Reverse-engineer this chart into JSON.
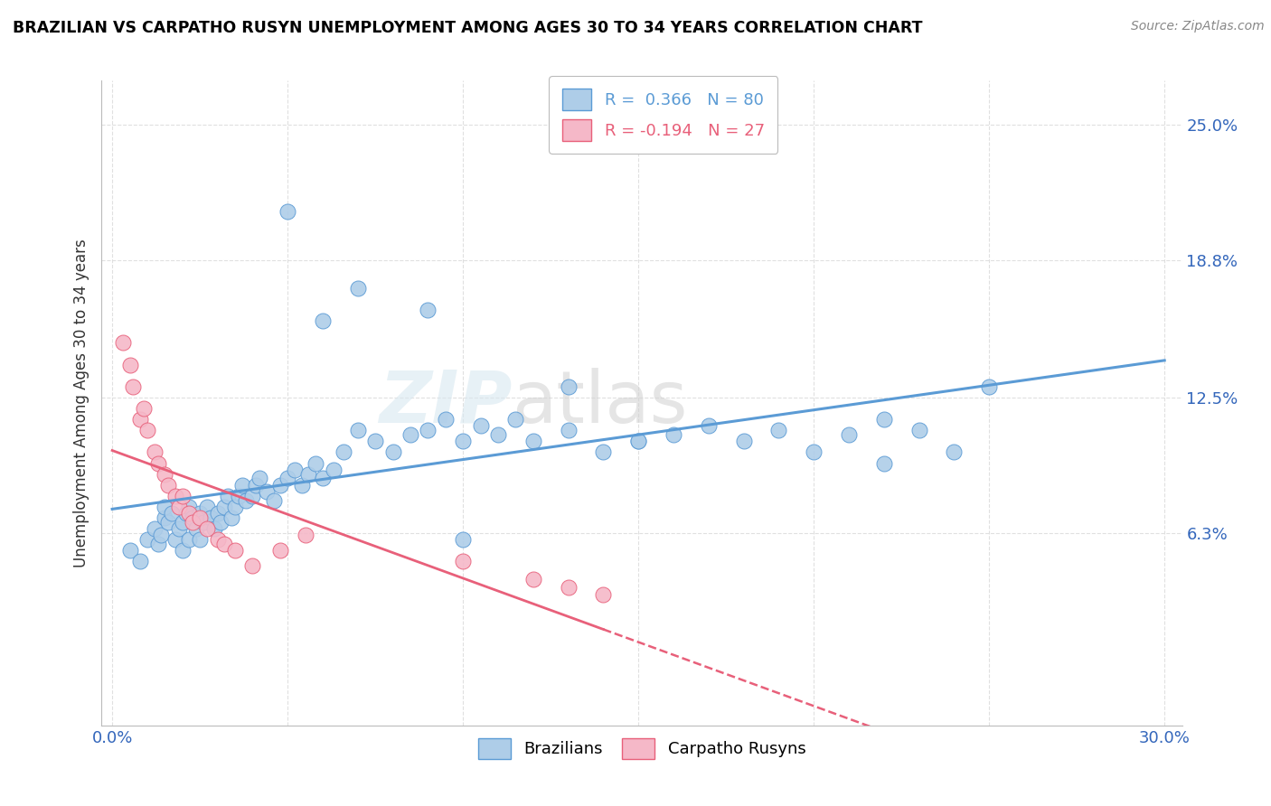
{
  "title": "BRAZILIAN VS CARPATHO RUSYN UNEMPLOYMENT AMONG AGES 30 TO 34 YEARS CORRELATION CHART",
  "source": "Source: ZipAtlas.com",
  "ylabel": "Unemployment Among Ages 30 to 34 years",
  "xlim": [
    0.0,
    0.3
  ],
  "ylim": [
    -0.025,
    0.27
  ],
  "xticks": [
    0.0,
    0.05,
    0.1,
    0.15,
    0.2,
    0.25,
    0.3
  ],
  "xticklabels": [
    "0.0%",
    "",
    "",
    "",
    "",
    "",
    "30.0%"
  ],
  "ytick_positions": [
    0.063,
    0.125,
    0.188,
    0.25
  ],
  "ytick_labels": [
    "6.3%",
    "12.5%",
    "18.8%",
    "25.0%"
  ],
  "color_brazilian": "#AECDE8",
  "color_carpatho": "#F5B8C8",
  "line_color_brazilian": "#5B9BD5",
  "line_color_carpatho": "#E8607A",
  "watermark_zip": "ZIP",
  "watermark_atlas": "atlas",
  "background_color": "#FFFFFF",
  "grid_color": "#DDDDDD",
  "brazilian_x": [
    0.005,
    0.008,
    0.01,
    0.012,
    0.013,
    0.014,
    0.015,
    0.015,
    0.016,
    0.017,
    0.018,
    0.019,
    0.02,
    0.02,
    0.021,
    0.022,
    0.022,
    0.023,
    0.024,
    0.025,
    0.025,
    0.026,
    0.027,
    0.028,
    0.029,
    0.03,
    0.031,
    0.032,
    0.033,
    0.034,
    0.035,
    0.036,
    0.037,
    0.038,
    0.04,
    0.041,
    0.042,
    0.044,
    0.046,
    0.048,
    0.05,
    0.052,
    0.054,
    0.056,
    0.058,
    0.06,
    0.063,
    0.066,
    0.07,
    0.075,
    0.08,
    0.085,
    0.09,
    0.095,
    0.1,
    0.105,
    0.11,
    0.115,
    0.12,
    0.13,
    0.14,
    0.15,
    0.16,
    0.17,
    0.18,
    0.19,
    0.2,
    0.21,
    0.22,
    0.23,
    0.05,
    0.06,
    0.07,
    0.09,
    0.13,
    0.15,
    0.24,
    0.25,
    0.22,
    0.1
  ],
  "brazilian_y": [
    0.055,
    0.05,
    0.06,
    0.065,
    0.058,
    0.062,
    0.07,
    0.075,
    0.068,
    0.072,
    0.06,
    0.065,
    0.055,
    0.068,
    0.072,
    0.06,
    0.075,
    0.07,
    0.065,
    0.072,
    0.06,
    0.068,
    0.075,
    0.07,
    0.065,
    0.072,
    0.068,
    0.075,
    0.08,
    0.07,
    0.075,
    0.08,
    0.085,
    0.078,
    0.08,
    0.085,
    0.088,
    0.082,
    0.078,
    0.085,
    0.088,
    0.092,
    0.085,
    0.09,
    0.095,
    0.088,
    0.092,
    0.1,
    0.11,
    0.105,
    0.1,
    0.108,
    0.11,
    0.115,
    0.105,
    0.112,
    0.108,
    0.115,
    0.105,
    0.11,
    0.1,
    0.105,
    0.108,
    0.112,
    0.105,
    0.11,
    0.1,
    0.108,
    0.115,
    0.11,
    0.21,
    0.16,
    0.175,
    0.165,
    0.13,
    0.105,
    0.1,
    0.13,
    0.095,
    0.06
  ],
  "carpatho_x": [
    0.003,
    0.005,
    0.006,
    0.008,
    0.009,
    0.01,
    0.012,
    0.013,
    0.015,
    0.016,
    0.018,
    0.019,
    0.02,
    0.022,
    0.023,
    0.025,
    0.027,
    0.03,
    0.032,
    0.035,
    0.04,
    0.12,
    0.13,
    0.14,
    0.1,
    0.055,
    0.048
  ],
  "carpatho_y": [
    0.15,
    0.14,
    0.13,
    0.115,
    0.12,
    0.11,
    0.1,
    0.095,
    0.09,
    0.085,
    0.08,
    0.075,
    0.08,
    0.072,
    0.068,
    0.07,
    0.065,
    0.06,
    0.058,
    0.055,
    0.048,
    0.042,
    0.038,
    0.035,
    0.05,
    0.062,
    0.055
  ]
}
